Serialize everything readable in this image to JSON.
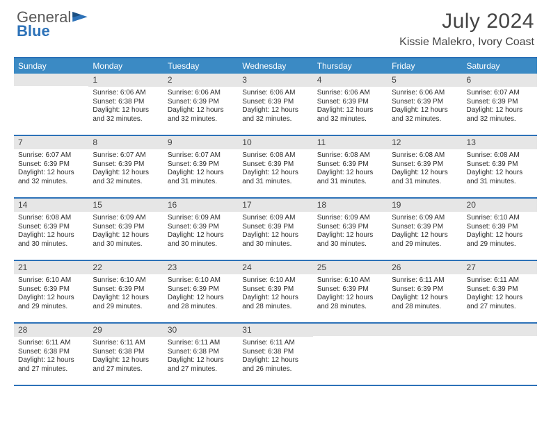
{
  "brand": {
    "line1": "General",
    "line2": "Blue"
  },
  "title": "July 2024",
  "location": "Kissie Malekro, Ivory Coast",
  "colors": {
    "header_bg": "#3b8ac4",
    "border": "#2d72b8",
    "daynum_bg": "#e6e6e6",
    "text": "#2b2b2b"
  },
  "typography": {
    "title_fontsize": 30,
    "location_fontsize": 16,
    "dow_fontsize": 12,
    "body_fontsize": 10
  },
  "days_of_week": [
    "Sunday",
    "Monday",
    "Tuesday",
    "Wednesday",
    "Thursday",
    "Friday",
    "Saturday"
  ],
  "weeks": [
    [
      {
        "n": "",
        "lines": []
      },
      {
        "n": "1",
        "lines": [
          "Sunrise: 6:06 AM",
          "Sunset: 6:38 PM",
          "Daylight: 12 hours",
          "and 32 minutes."
        ]
      },
      {
        "n": "2",
        "lines": [
          "Sunrise: 6:06 AM",
          "Sunset: 6:39 PM",
          "Daylight: 12 hours",
          "and 32 minutes."
        ]
      },
      {
        "n": "3",
        "lines": [
          "Sunrise: 6:06 AM",
          "Sunset: 6:39 PM",
          "Daylight: 12 hours",
          "and 32 minutes."
        ]
      },
      {
        "n": "4",
        "lines": [
          "Sunrise: 6:06 AM",
          "Sunset: 6:39 PM",
          "Daylight: 12 hours",
          "and 32 minutes."
        ]
      },
      {
        "n": "5",
        "lines": [
          "Sunrise: 6:06 AM",
          "Sunset: 6:39 PM",
          "Daylight: 12 hours",
          "and 32 minutes."
        ]
      },
      {
        "n": "6",
        "lines": [
          "Sunrise: 6:07 AM",
          "Sunset: 6:39 PM",
          "Daylight: 12 hours",
          "and 32 minutes."
        ]
      }
    ],
    [
      {
        "n": "7",
        "lines": [
          "Sunrise: 6:07 AM",
          "Sunset: 6:39 PM",
          "Daylight: 12 hours",
          "and 32 minutes."
        ]
      },
      {
        "n": "8",
        "lines": [
          "Sunrise: 6:07 AM",
          "Sunset: 6:39 PM",
          "Daylight: 12 hours",
          "and 32 minutes."
        ]
      },
      {
        "n": "9",
        "lines": [
          "Sunrise: 6:07 AM",
          "Sunset: 6:39 PM",
          "Daylight: 12 hours",
          "and 31 minutes."
        ]
      },
      {
        "n": "10",
        "lines": [
          "Sunrise: 6:08 AM",
          "Sunset: 6:39 PM",
          "Daylight: 12 hours",
          "and 31 minutes."
        ]
      },
      {
        "n": "11",
        "lines": [
          "Sunrise: 6:08 AM",
          "Sunset: 6:39 PM",
          "Daylight: 12 hours",
          "and 31 minutes."
        ]
      },
      {
        "n": "12",
        "lines": [
          "Sunrise: 6:08 AM",
          "Sunset: 6:39 PM",
          "Daylight: 12 hours",
          "and 31 minutes."
        ]
      },
      {
        "n": "13",
        "lines": [
          "Sunrise: 6:08 AM",
          "Sunset: 6:39 PM",
          "Daylight: 12 hours",
          "and 31 minutes."
        ]
      }
    ],
    [
      {
        "n": "14",
        "lines": [
          "Sunrise: 6:08 AM",
          "Sunset: 6:39 PM",
          "Daylight: 12 hours",
          "and 30 minutes."
        ]
      },
      {
        "n": "15",
        "lines": [
          "Sunrise: 6:09 AM",
          "Sunset: 6:39 PM",
          "Daylight: 12 hours",
          "and 30 minutes."
        ]
      },
      {
        "n": "16",
        "lines": [
          "Sunrise: 6:09 AM",
          "Sunset: 6:39 PM",
          "Daylight: 12 hours",
          "and 30 minutes."
        ]
      },
      {
        "n": "17",
        "lines": [
          "Sunrise: 6:09 AM",
          "Sunset: 6:39 PM",
          "Daylight: 12 hours",
          "and 30 minutes."
        ]
      },
      {
        "n": "18",
        "lines": [
          "Sunrise: 6:09 AM",
          "Sunset: 6:39 PM",
          "Daylight: 12 hours",
          "and 30 minutes."
        ]
      },
      {
        "n": "19",
        "lines": [
          "Sunrise: 6:09 AM",
          "Sunset: 6:39 PM",
          "Daylight: 12 hours",
          "and 29 minutes."
        ]
      },
      {
        "n": "20",
        "lines": [
          "Sunrise: 6:10 AM",
          "Sunset: 6:39 PM",
          "Daylight: 12 hours",
          "and 29 minutes."
        ]
      }
    ],
    [
      {
        "n": "21",
        "lines": [
          "Sunrise: 6:10 AM",
          "Sunset: 6:39 PM",
          "Daylight: 12 hours",
          "and 29 minutes."
        ]
      },
      {
        "n": "22",
        "lines": [
          "Sunrise: 6:10 AM",
          "Sunset: 6:39 PM",
          "Daylight: 12 hours",
          "and 29 minutes."
        ]
      },
      {
        "n": "23",
        "lines": [
          "Sunrise: 6:10 AM",
          "Sunset: 6:39 PM",
          "Daylight: 12 hours",
          "and 28 minutes."
        ]
      },
      {
        "n": "24",
        "lines": [
          "Sunrise: 6:10 AM",
          "Sunset: 6:39 PM",
          "Daylight: 12 hours",
          "and 28 minutes."
        ]
      },
      {
        "n": "25",
        "lines": [
          "Sunrise: 6:10 AM",
          "Sunset: 6:39 PM",
          "Daylight: 12 hours",
          "and 28 minutes."
        ]
      },
      {
        "n": "26",
        "lines": [
          "Sunrise: 6:11 AM",
          "Sunset: 6:39 PM",
          "Daylight: 12 hours",
          "and 28 minutes."
        ]
      },
      {
        "n": "27",
        "lines": [
          "Sunrise: 6:11 AM",
          "Sunset: 6:39 PM",
          "Daylight: 12 hours",
          "and 27 minutes."
        ]
      }
    ],
    [
      {
        "n": "28",
        "lines": [
          "Sunrise: 6:11 AM",
          "Sunset: 6:38 PM",
          "Daylight: 12 hours",
          "and 27 minutes."
        ]
      },
      {
        "n": "29",
        "lines": [
          "Sunrise: 6:11 AM",
          "Sunset: 6:38 PM",
          "Daylight: 12 hours",
          "and 27 minutes."
        ]
      },
      {
        "n": "30",
        "lines": [
          "Sunrise: 6:11 AM",
          "Sunset: 6:38 PM",
          "Daylight: 12 hours",
          "and 27 minutes."
        ]
      },
      {
        "n": "31",
        "lines": [
          "Sunrise: 6:11 AM",
          "Sunset: 6:38 PM",
          "Daylight: 12 hours",
          "and 26 minutes."
        ]
      },
      {
        "n": "",
        "lines": []
      },
      {
        "n": "",
        "lines": []
      },
      {
        "n": "",
        "lines": []
      }
    ]
  ]
}
